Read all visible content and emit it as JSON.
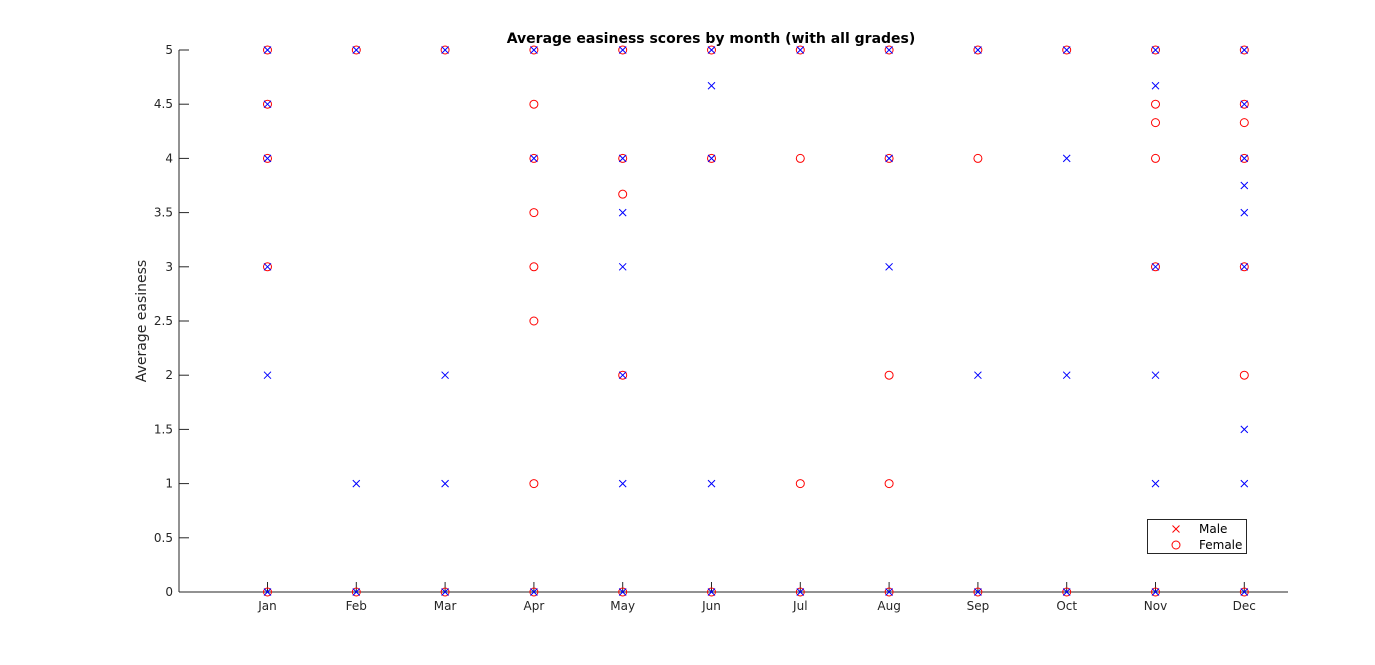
{
  "chart_data": {
    "type": "scatter",
    "title": "Average easiness scores by month (with all grades)",
    "xlabel": "",
    "ylabel": "Average easiness",
    "categories": [
      "Jan",
      "Feb",
      "Mar",
      "Apr",
      "May",
      "Jun",
      "Jul",
      "Aug",
      "Sep",
      "Oct",
      "Nov",
      "Dec"
    ],
    "ylim": [
      0,
      5
    ],
    "yticks": [
      "0",
      "0.5",
      "1",
      "1.5",
      "2",
      "2.5",
      "3",
      "3.5",
      "4",
      "4.5",
      "5"
    ],
    "grid": false,
    "legend_position": "bottom-right",
    "series": [
      {
        "name": "Male",
        "marker": "x",
        "legend_color": "#ff0000",
        "color": "#0000ff",
        "points": [
          [
            "Jan",
            0
          ],
          [
            "Jan",
            2
          ],
          [
            "Jan",
            3
          ],
          [
            "Jan",
            4
          ],
          [
            "Jan",
            4.5
          ],
          [
            "Jan",
            5
          ],
          [
            "Feb",
            0
          ],
          [
            "Feb",
            1
          ],
          [
            "Feb",
            5
          ],
          [
            "Mar",
            0
          ],
          [
            "Mar",
            1
          ],
          [
            "Mar",
            2
          ],
          [
            "Mar",
            5
          ],
          [
            "Apr",
            0
          ],
          [
            "Apr",
            4
          ],
          [
            "Apr",
            5
          ],
          [
            "May",
            0
          ],
          [
            "May",
            1
          ],
          [
            "May",
            2
          ],
          [
            "May",
            3
          ],
          [
            "May",
            3.5
          ],
          [
            "May",
            4
          ],
          [
            "May",
            5
          ],
          [
            "Jun",
            0
          ],
          [
            "Jun",
            1
          ],
          [
            "Jun",
            4
          ],
          [
            "Jun",
            4.67
          ],
          [
            "Jun",
            5
          ],
          [
            "Jul",
            0
          ],
          [
            "Jul",
            5
          ],
          [
            "Aug",
            0
          ],
          [
            "Aug",
            3
          ],
          [
            "Aug",
            4
          ],
          [
            "Aug",
            5
          ],
          [
            "Sep",
            0
          ],
          [
            "Sep",
            2
          ],
          [
            "Sep",
            5
          ],
          [
            "Oct",
            0
          ],
          [
            "Oct",
            2
          ],
          [
            "Oct",
            4
          ],
          [
            "Oct",
            5
          ],
          [
            "Nov",
            0
          ],
          [
            "Nov",
            1
          ],
          [
            "Nov",
            2
          ],
          [
            "Nov",
            3
          ],
          [
            "Nov",
            4.67
          ],
          [
            "Nov",
            5
          ],
          [
            "Dec",
            0
          ],
          [
            "Dec",
            1
          ],
          [
            "Dec",
            1.5
          ],
          [
            "Dec",
            3
          ],
          [
            "Dec",
            3.5
          ],
          [
            "Dec",
            3.75
          ],
          [
            "Dec",
            4
          ],
          [
            "Dec",
            4.5
          ],
          [
            "Dec",
            5
          ]
        ]
      },
      {
        "name": "Female",
        "marker": "o",
        "legend_color": "#ff0000",
        "color": "#ff0000",
        "points": [
          [
            "Jan",
            0
          ],
          [
            "Jan",
            3
          ],
          [
            "Jan",
            4
          ],
          [
            "Jan",
            4.5
          ],
          [
            "Jan",
            5
          ],
          [
            "Feb",
            0
          ],
          [
            "Feb",
            5
          ],
          [
            "Mar",
            0
          ],
          [
            "Mar",
            5
          ],
          [
            "Apr",
            0
          ],
          [
            "Apr",
            1
          ],
          [
            "Apr",
            2.5
          ],
          [
            "Apr",
            3
          ],
          [
            "Apr",
            3.5
          ],
          [
            "Apr",
            4
          ],
          [
            "Apr",
            4.5
          ],
          [
            "Apr",
            5
          ],
          [
            "May",
            0
          ],
          [
            "May",
            2
          ],
          [
            "May",
            3.67
          ],
          [
            "May",
            4
          ],
          [
            "May",
            5
          ],
          [
            "Jun",
            0
          ],
          [
            "Jun",
            4
          ],
          [
            "Jun",
            5
          ],
          [
            "Jul",
            0
          ],
          [
            "Jul",
            1
          ],
          [
            "Jul",
            4
          ],
          [
            "Jul",
            5
          ],
          [
            "Aug",
            0
          ],
          [
            "Aug",
            1
          ],
          [
            "Aug",
            2
          ],
          [
            "Aug",
            4
          ],
          [
            "Aug",
            5
          ],
          [
            "Sep",
            0
          ],
          [
            "Sep",
            4
          ],
          [
            "Sep",
            5
          ],
          [
            "Oct",
            0
          ],
          [
            "Oct",
            5
          ],
          [
            "Nov",
            0
          ],
          [
            "Nov",
            3
          ],
          [
            "Nov",
            4
          ],
          [
            "Nov",
            4.33
          ],
          [
            "Nov",
            4.5
          ],
          [
            "Nov",
            5
          ],
          [
            "Dec",
            0
          ],
          [
            "Dec",
            2
          ],
          [
            "Dec",
            3
          ],
          [
            "Dec",
            4
          ],
          [
            "Dec",
            4.33
          ],
          [
            "Dec",
            4.5
          ],
          [
            "Dec",
            5
          ]
        ]
      }
    ]
  }
}
